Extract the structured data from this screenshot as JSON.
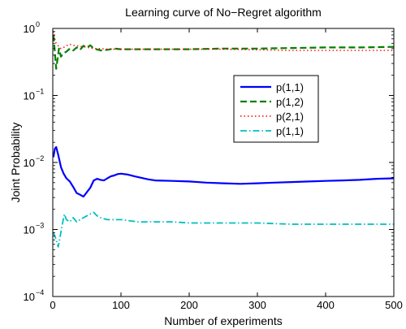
{
  "chart_data": {
    "type": "line",
    "title": "Learning curve of No−Regret algorithm",
    "xlabel": "Number of experiments",
    "ylabel": "Joint Probability",
    "xlim": [
      0,
      500
    ],
    "ylim": [
      0.0001,
      1
    ],
    "yscale": "log",
    "x_ticks": [
      0,
      100,
      200,
      300,
      400,
      500
    ],
    "y_ticks": [
      {
        "value": 0.0001,
        "base": "10",
        "exp": "−4"
      },
      {
        "value": 0.001,
        "base": "10",
        "exp": "−3"
      },
      {
        "value": 0.01,
        "base": "10",
        "exp": "−2"
      },
      {
        "value": 0.1,
        "base": "10",
        "exp": "−1"
      },
      {
        "value": 1,
        "base": "10",
        "exp": "0"
      }
    ],
    "grid": false,
    "legend_position": "right-middle",
    "series": [
      {
        "name": "p(1,1)",
        "color": "#0000ff",
        "dash": "solid",
        "points": [
          [
            1,
            0.012
          ],
          [
            3,
            0.016
          ],
          [
            5,
            0.017
          ],
          [
            8,
            0.013
          ],
          [
            12,
            0.0085
          ],
          [
            16,
            0.0068
          ],
          [
            20,
            0.0058
          ],
          [
            25,
            0.0052
          ],
          [
            30,
            0.0043
          ],
          [
            35,
            0.0035
          ],
          [
            40,
            0.0033
          ],
          [
            45,
            0.0031
          ],
          [
            50,
            0.0036
          ],
          [
            55,
            0.0042
          ],
          [
            60,
            0.0054
          ],
          [
            65,
            0.0057
          ],
          [
            70,
            0.0055
          ],
          [
            75,
            0.0054
          ],
          [
            80,
            0.0058
          ],
          [
            85,
            0.0062
          ],
          [
            90,
            0.0064
          ],
          [
            95,
            0.0067
          ],
          [
            100,
            0.0068
          ],
          [
            110,
            0.0066
          ],
          [
            120,
            0.0062
          ],
          [
            130,
            0.0059
          ],
          [
            140,
            0.0056
          ],
          [
            150,
            0.0054
          ],
          [
            175,
            0.0053
          ],
          [
            200,
            0.0052
          ],
          [
            225,
            0.005
          ],
          [
            250,
            0.0049
          ],
          [
            275,
            0.0048
          ],
          [
            300,
            0.0049
          ],
          [
            325,
            0.005
          ],
          [
            350,
            0.0051
          ],
          [
            375,
            0.0052
          ],
          [
            400,
            0.0053
          ],
          [
            425,
            0.0054
          ],
          [
            450,
            0.0055
          ],
          [
            475,
            0.0057
          ],
          [
            500,
            0.0058
          ]
        ]
      },
      {
        "name": "p(1,2)",
        "color": "#008000",
        "dash": "dashed",
        "points": [
          [
            1,
            0.8
          ],
          [
            3,
            0.45
          ],
          [
            5,
            0.25
          ],
          [
            7,
            0.35
          ],
          [
            9,
            0.5
          ],
          [
            12,
            0.38
          ],
          [
            15,
            0.42
          ],
          [
            20,
            0.45
          ],
          [
            25,
            0.5
          ],
          [
            30,
            0.47
          ],
          [
            35,
            0.52
          ],
          [
            40,
            0.48
          ],
          [
            45,
            0.55
          ],
          [
            50,
            0.52
          ],
          [
            55,
            0.56
          ],
          [
            60,
            0.5
          ],
          [
            70,
            0.47
          ],
          [
            80,
            0.48
          ],
          [
            90,
            0.5
          ],
          [
            100,
            0.49
          ],
          [
            125,
            0.49
          ],
          [
            150,
            0.49
          ],
          [
            175,
            0.49
          ],
          [
            200,
            0.49
          ],
          [
            250,
            0.5
          ],
          [
            300,
            0.5
          ],
          [
            350,
            0.51
          ],
          [
            400,
            0.52
          ],
          [
            450,
            0.52
          ],
          [
            500,
            0.53
          ]
        ]
      },
      {
        "name": "p(2,1)",
        "color": "#ff0000",
        "dash": "dotted",
        "points": [
          [
            1,
            0.9
          ],
          [
            3,
            0.7
          ],
          [
            5,
            0.6
          ],
          [
            8,
            0.55
          ],
          [
            12,
            0.5
          ],
          [
            16,
            0.52
          ],
          [
            20,
            0.55
          ],
          [
            25,
            0.58
          ],
          [
            30,
            0.56
          ],
          [
            35,
            0.55
          ],
          [
            40,
            0.54
          ],
          [
            45,
            0.53
          ],
          [
            50,
            0.52
          ],
          [
            60,
            0.5
          ],
          [
            70,
            0.5
          ],
          [
            80,
            0.49
          ],
          [
            100,
            0.49
          ],
          [
            125,
            0.49
          ],
          [
            150,
            0.49
          ],
          [
            200,
            0.49
          ],
          [
            250,
            0.49
          ],
          [
            300,
            0.48
          ],
          [
            350,
            0.47
          ],
          [
            400,
            0.47
          ],
          [
            450,
            0.47
          ],
          [
            500,
            0.47
          ]
        ]
      },
      {
        "name": "p(1,1)",
        "color": "#00bfbf",
        "dash": "dashdot",
        "points": [
          [
            1,
            0.0009
          ],
          [
            3,
            0.0008
          ],
          [
            5,
            0.0007
          ],
          [
            8,
            0.00055
          ],
          [
            11,
            0.0008
          ],
          [
            14,
            0.0012
          ],
          [
            17,
            0.0017
          ],
          [
            20,
            0.0014
          ],
          [
            25,
            0.0013
          ],
          [
            30,
            0.0015
          ],
          [
            35,
            0.0013
          ],
          [
            40,
            0.0014
          ],
          [
            45,
            0.0015
          ],
          [
            50,
            0.0016
          ],
          [
            55,
            0.0017
          ],
          [
            60,
            0.0018
          ],
          [
            65,
            0.0016
          ],
          [
            70,
            0.0015
          ],
          [
            80,
            0.0014
          ],
          [
            90,
            0.0014
          ],
          [
            100,
            0.0014
          ],
          [
            125,
            0.0013
          ],
          [
            150,
            0.0013
          ],
          [
            175,
            0.0013
          ],
          [
            200,
            0.00125
          ],
          [
            250,
            0.00125
          ],
          [
            300,
            0.00125
          ],
          [
            350,
            0.0012
          ],
          [
            400,
            0.0012
          ],
          [
            450,
            0.0012
          ],
          [
            500,
            0.0012
          ]
        ]
      }
    ]
  }
}
